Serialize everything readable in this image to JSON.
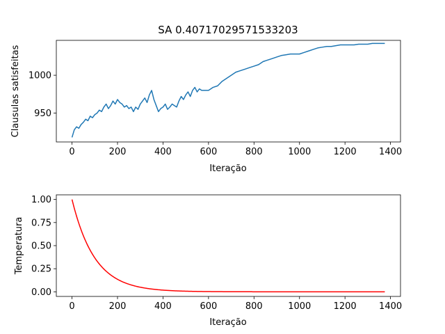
{
  "chart_data": [
    {
      "type": "line",
      "title": "SA 0.40717029571533203",
      "xlabel": "Iteração",
      "ylabel": "Clausulas satisfeitas",
      "xlim": [
        -69,
        1444
      ],
      "ylim": [
        912,
        1046
      ],
      "xticks": [
        0,
        200,
        400,
        600,
        800,
        1000,
        1200,
        1400
      ],
      "yticks": [
        950,
        1000
      ],
      "grid": false,
      "line_color": "#1f77b4",
      "series": [
        {
          "x": [
            0,
            10,
            20,
            30,
            40,
            50,
            60,
            70,
            80,
            90,
            100,
            110,
            120,
            130,
            140,
            150,
            160,
            170,
            180,
            190,
            200,
            210,
            220,
            230,
            240,
            250,
            260,
            270,
            280,
            290,
            300,
            310,
            320,
            330,
            340,
            350,
            360,
            370,
            380,
            390,
            400,
            410,
            420,
            430,
            440,
            450,
            460,
            470,
            480,
            490,
            500,
            510,
            520,
            530,
            540,
            550,
            560,
            570,
            580,
            600,
            620,
            640,
            660,
            680,
            700,
            720,
            740,
            760,
            780,
            800,
            820,
            840,
            860,
            880,
            900,
            920,
            940,
            960,
            980,
            1000,
            1020,
            1040,
            1060,
            1080,
            1100,
            1120,
            1140,
            1160,
            1180,
            1200,
            1220,
            1240,
            1260,
            1280,
            1300,
            1320,
            1340,
            1360,
            1375
          ],
          "y": [
            918,
            928,
            932,
            930,
            935,
            938,
            942,
            940,
            946,
            944,
            948,
            950,
            954,
            952,
            958,
            962,
            956,
            960,
            966,
            962,
            968,
            964,
            962,
            958,
            960,
            956,
            958,
            952,
            958,
            955,
            962,
            966,
            970,
            964,
            974,
            980,
            968,
            960,
            952,
            956,
            958,
            962,
            955,
            958,
            962,
            960,
            958,
            966,
            972,
            968,
            974,
            978,
            972,
            980,
            984,
            978,
            982,
            980,
            980,
            980,
            984,
            986,
            992,
            996,
            1000,
            1004,
            1006,
            1008,
            1010,
            1012,
            1014,
            1018,
            1020,
            1022,
            1024,
            1026,
            1027,
            1028,
            1028,
            1028,
            1030,
            1032,
            1034,
            1036,
            1037,
            1038,
            1038,
            1039,
            1040,
            1040,
            1040,
            1040,
            1041,
            1041,
            1041,
            1042,
            1042,
            1042,
            1042
          ]
        }
      ]
    },
    {
      "type": "line",
      "title": "",
      "xlabel": "Iteração",
      "ylabel": "Temperatura",
      "xlim": [
        -69,
        1444
      ],
      "ylim": [
        -0.05,
        1.05
      ],
      "xticks": [
        0,
        200,
        400,
        600,
        800,
        1000,
        1200,
        1400
      ],
      "yticks": [
        "0.00",
        "0.25",
        "0.50",
        "0.75",
        "1.00"
      ],
      "grid": false,
      "line_color": "#ff0000",
      "function": "exp",
      "decay_rate": 0.01,
      "x_range": [
        0,
        1375
      ]
    }
  ]
}
